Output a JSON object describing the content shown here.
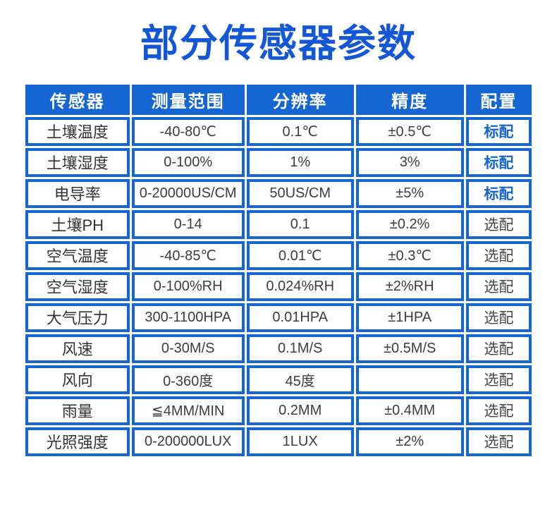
{
  "page": {
    "title": "部分传感器参数"
  },
  "colors": {
    "accent_blue": "#1565d2",
    "title_blue": "#1356d6",
    "header_text": "#ffffff",
    "body_text": "#3d3d3d",
    "optional_text": "#474747"
  },
  "table": {
    "headers": [
      "传感器",
      "测量范围",
      "分辨率",
      "精度",
      "配置"
    ],
    "rows": [
      {
        "sensor": "土壤温度",
        "range": "-40-80℃",
        "resolution": "0.1℃",
        "accuracy": "±0.5℃",
        "config": "标配",
        "config_type": "standard"
      },
      {
        "sensor": "土壤湿度",
        "range": "0-100%",
        "resolution": "1%",
        "accuracy": "3%",
        "config": "标配",
        "config_type": "standard"
      },
      {
        "sensor": "电导率",
        "range": "0-20000US/CM",
        "resolution": "50US/CM",
        "accuracy": "±5%",
        "config": "标配",
        "config_type": "standard"
      },
      {
        "sensor": "土壤PH",
        "range": "0-14",
        "resolution": "0.1",
        "accuracy": "±0.2%",
        "config": "选配",
        "config_type": "optional"
      },
      {
        "sensor": "空气温度",
        "range": "-40-85℃",
        "resolution": "0.01℃",
        "accuracy": "±0.3℃",
        "config": "选配",
        "config_type": "optional"
      },
      {
        "sensor": "空气湿度",
        "range": "0-100%RH",
        "resolution": "0.024%RH",
        "accuracy": "±2%RH",
        "config": "选配",
        "config_type": "optional"
      },
      {
        "sensor": "大气压力",
        "range": "300-1100HPA",
        "resolution": "0.01HPA",
        "accuracy": "±1HPA",
        "config": "选配",
        "config_type": "optional"
      },
      {
        "sensor": "风速",
        "range": "0-30M/S",
        "resolution": "0.1M/S",
        "accuracy": "±0.5M/S",
        "config": "选配",
        "config_type": "optional"
      },
      {
        "sensor": "风向",
        "range": "0-360度",
        "resolution": "45度",
        "accuracy": "",
        "config": "选配",
        "config_type": "optional"
      },
      {
        "sensor": "雨量",
        "range": "≦4MM/MIN",
        "resolution": "0.2MM",
        "accuracy": "±0.4MM",
        "config": "选配",
        "config_type": "optional"
      },
      {
        "sensor": "光照强度",
        "range": "0-200000LUX",
        "resolution": "1LUX",
        "accuracy": "±2%",
        "config": "选配",
        "config_type": "optional"
      }
    ]
  }
}
